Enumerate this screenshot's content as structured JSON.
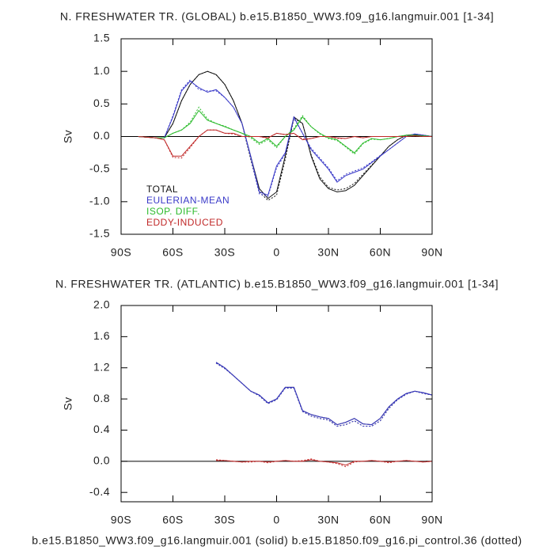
{
  "chart_data": [
    {
      "type": "line",
      "title": "N. FRESHWATER TR. (GLOBAL) b.e15.B1850_WW3.f09_g16.langmuir.001 [1-34]",
      "y_label": "Sv",
      "x": [
        -80,
        -75,
        -70,
        -65,
        -60,
        -55,
        -50,
        -45,
        -40,
        -35,
        -30,
        -25,
        -20,
        -15,
        -10,
        -5,
        0,
        5,
        10,
        15,
        20,
        25,
        30,
        35,
        40,
        45,
        50,
        55,
        60,
        65,
        70,
        75,
        80,
        85,
        90
      ],
      "xlim": [
        -90,
        90
      ],
      "xticks": [
        {
          "value": -90,
          "label": "90S"
        },
        {
          "value": -60,
          "label": "60S"
        },
        {
          "value": -30,
          "label": "30S"
        },
        0,
        {
          "value": 30,
          "label": "30N"
        },
        {
          "value": 60,
          "label": "60N"
        },
        {
          "value": 90,
          "label": "90N"
        }
      ],
      "ylim": [
        -1.5,
        1.5
      ],
      "yticks": [
        -1.5,
        {
          "value": -1.0,
          "label": "-1.0"
        },
        -0.5,
        {
          "value": 0,
          "label": "0.0"
        },
        0.5,
        {
          "value": 1.0,
          "label": "1.0"
        },
        1.5
      ],
      "series": [
        {
          "name": "TOTAL",
          "color": "#111111",
          "values": [
            0,
            -0.01,
            -0.02,
            -0.02,
            0.2,
            0.55,
            0.8,
            0.95,
            1.0,
            0.95,
            0.8,
            0.55,
            0.2,
            -0.3,
            -0.8,
            -0.95,
            -0.85,
            -0.3,
            0.3,
            0.2,
            -0.3,
            -0.65,
            -0.8,
            -0.85,
            -0.83,
            -0.75,
            -0.6,
            -0.45,
            -0.3,
            -0.15,
            -0.05,
            0.02,
            0.03,
            0.02,
            0
          ],
          "dotted_values": [
            0,
            -0.01,
            -0.02,
            -0.02,
            0.2,
            0.55,
            0.8,
            0.95,
            1.0,
            0.95,
            0.8,
            0.55,
            0.2,
            -0.35,
            -0.85,
            -0.98,
            -0.9,
            -0.35,
            0.28,
            0.2,
            -0.28,
            -0.62,
            -0.78,
            -0.82,
            -0.8,
            -0.72,
            -0.58,
            -0.44,
            -0.3,
            -0.15,
            -0.05,
            0.02,
            0.03,
            0.02,
            0
          ]
        },
        {
          "name": "EULERIAN-MEAN",
          "color": "#3a3ac8",
          "values": [
            0,
            -0.01,
            -0.02,
            -0.02,
            0.3,
            0.7,
            0.85,
            0.75,
            0.68,
            0.72,
            0.6,
            0.45,
            0.2,
            -0.3,
            -0.85,
            -0.9,
            -0.45,
            -0.25,
            0.3,
            0.05,
            -0.2,
            -0.35,
            -0.5,
            -0.7,
            -0.6,
            -0.55,
            -0.5,
            -0.4,
            -0.3,
            -0.2,
            -0.1,
            0,
            0.04,
            0.02,
            0
          ],
          "dotted_values": [
            0,
            -0.01,
            -0.02,
            -0.02,
            0.32,
            0.72,
            0.87,
            0.72,
            0.7,
            0.7,
            0.6,
            0.45,
            0.2,
            -0.33,
            -0.88,
            -0.92,
            -0.48,
            -0.27,
            0.28,
            0.05,
            -0.18,
            -0.33,
            -0.48,
            -0.68,
            -0.58,
            -0.53,
            -0.48,
            -0.39,
            -0.29,
            -0.2,
            -0.1,
            0,
            0.04,
            0.02,
            0
          ]
        },
        {
          "name": "ISOP. DIFF.",
          "color": "#2cbb2c",
          "values": [
            0,
            -0.01,
            -0.02,
            -0.02,
            0.05,
            0.1,
            0.2,
            0.4,
            0.25,
            0.2,
            0.15,
            0.1,
            0.05,
            0,
            -0.1,
            -0.03,
            -0.15,
            0,
            0.1,
            0.3,
            0.15,
            0.05,
            -0.02,
            -0.05,
            -0.15,
            -0.25,
            -0.1,
            -0.03,
            -0.05,
            -0.03,
            0,
            0.02,
            0.02,
            0.01,
            0
          ],
          "dotted_values": [
            0,
            -0.01,
            -0.02,
            -0.02,
            0.05,
            0.1,
            0.22,
            0.45,
            0.27,
            0.2,
            0.16,
            0.1,
            0.05,
            -0.02,
            -0.12,
            -0.05,
            -0.17,
            0,
            0.12,
            0.32,
            0.15,
            0.04,
            -0.03,
            -0.06,
            -0.16,
            -0.27,
            -0.11,
            -0.04,
            -0.05,
            -0.03,
            0,
            0.02,
            0.02,
            0.01,
            0
          ]
        },
        {
          "name": "EDDY-INDUCED",
          "color": "#c02828",
          "values": [
            0,
            -0.01,
            -0.02,
            -0.05,
            -0.3,
            -0.3,
            -0.15,
            0,
            0.1,
            0.1,
            0.05,
            0.05,
            0,
            0,
            0,
            -0.02,
            0.05,
            0.03,
            0.05,
            -0.05,
            -0.03,
            0,
            0,
            -0.02,
            -0.03,
            0,
            -0.02,
            0,
            0,
            0,
            0,
            0,
            0.01,
            0,
            0
          ],
          "dotted_values": [
            0,
            -0.01,
            -0.02,
            -0.05,
            -0.32,
            -0.33,
            -0.17,
            0,
            0.1,
            0.1,
            0.05,
            0.04,
            0,
            0,
            0,
            -0.03,
            0.05,
            0.03,
            0.05,
            -0.04,
            -0.03,
            0,
            0,
            -0.03,
            -0.03,
            0,
            -0.02,
            0,
            0,
            0,
            0,
            0,
            0.01,
            0,
            0
          ]
        }
      ]
    },
    {
      "type": "line",
      "title": "N. FRESHWATER TR. (ATLANTIC) b.e15.B1850_WW3.f09_g16.langmuir.001 [1-34]",
      "y_label": "Sv",
      "x": [
        -80,
        -75,
        -70,
        -65,
        -60,
        -55,
        -50,
        -45,
        -40,
        -35,
        -30,
        -25,
        -20,
        -15,
        -10,
        -5,
        0,
        5,
        10,
        15,
        20,
        25,
        30,
        35,
        40,
        45,
        50,
        55,
        60,
        65,
        70,
        75,
        80,
        85,
        90
      ],
      "xlim": [
        -90,
        90
      ],
      "xticks": [
        {
          "value": -90,
          "label": "90S"
        },
        {
          "value": -60,
          "label": "60S"
        },
        {
          "value": -30,
          "label": "30S"
        },
        0,
        {
          "value": 30,
          "label": "30N"
        },
        {
          "value": 60,
          "label": "60N"
        },
        {
          "value": 90,
          "label": "90N"
        }
      ],
      "ylim": [
        -0.52,
        2.0
      ],
      "yticks": [
        -0.4,
        {
          "value": 0,
          "label": "0.0"
        },
        0.4,
        0.8,
        1.2,
        1.6,
        {
          "value": 2.0,
          "label": "2.0"
        }
      ],
      "series": [
        {
          "color": "#111111",
          "values": [
            null,
            null,
            null,
            null,
            null,
            null,
            null,
            null,
            null,
            1.27,
            1.2,
            1.1,
            1.0,
            0.9,
            0.85,
            0.75,
            0.8,
            0.95,
            0.95,
            0.65,
            0.6,
            0.57,
            0.55,
            0.47,
            0.5,
            0.55,
            0.48,
            0.47,
            0.55,
            0.7,
            0.8,
            0.87,
            0.9,
            0.88,
            0.85
          ],
          "dotted_values": [
            null,
            null,
            null,
            null,
            null,
            null,
            null,
            null,
            null,
            1.26,
            1.19,
            1.1,
            1.0,
            0.9,
            0.84,
            0.74,
            0.79,
            0.94,
            0.94,
            0.64,
            0.58,
            0.55,
            0.53,
            0.45,
            0.47,
            0.52,
            0.45,
            0.45,
            0.52,
            0.68,
            0.79,
            0.86,
            0.9,
            0.87,
            0.85
          ]
        },
        {
          "color": "#3a3ac8",
          "values": [
            null,
            null,
            null,
            null,
            null,
            null,
            null,
            null,
            null,
            1.27,
            1.2,
            1.1,
            1.0,
            0.9,
            0.85,
            0.75,
            0.8,
            0.95,
            0.95,
            0.65,
            0.6,
            0.57,
            0.55,
            0.47,
            0.5,
            0.55,
            0.48,
            0.47,
            0.55,
            0.7,
            0.8,
            0.87,
            0.9,
            0.88,
            0.85
          ],
          "dotted_values": [
            null,
            null,
            null,
            null,
            null,
            null,
            null,
            null,
            null,
            1.26,
            1.19,
            1.1,
            1.0,
            0.9,
            0.84,
            0.74,
            0.79,
            0.94,
            0.94,
            0.64,
            0.58,
            0.55,
            0.53,
            0.45,
            0.47,
            0.52,
            0.45,
            0.45,
            0.52,
            0.68,
            0.79,
            0.86,
            0.9,
            0.87,
            0.85
          ]
        },
        {
          "color": "#c02828",
          "values": [
            null,
            null,
            null,
            null,
            null,
            null,
            null,
            null,
            null,
            0.01,
            0.01,
            0,
            -0.01,
            0,
            0,
            -0.01,
            0,
            0.01,
            0,
            0,
            0.02,
            0,
            -0.01,
            -0.02,
            -0.05,
            0,
            0,
            0.01,
            0,
            -0.01,
            0,
            0.01,
            0,
            -0.01,
            0
          ],
          "dotted_values": [
            null,
            null,
            null,
            null,
            null,
            null,
            null,
            null,
            null,
            0.02,
            0.01,
            0,
            -0.01,
            -0.01,
            0,
            -0.02,
            0,
            0.01,
            0,
            0.01,
            0.03,
            0,
            -0.01,
            -0.03,
            -0.07,
            -0.01,
            0,
            0.01,
            0,
            -0.02,
            0,
            0.01,
            0,
            -0.01,
            0
          ]
        }
      ]
    }
  ],
  "caption": "b.e15.B1850_WW3.f09_g16.langmuir.001 (solid) b.e15.B1850.f09_g16.pi_control.36 (dotted)"
}
